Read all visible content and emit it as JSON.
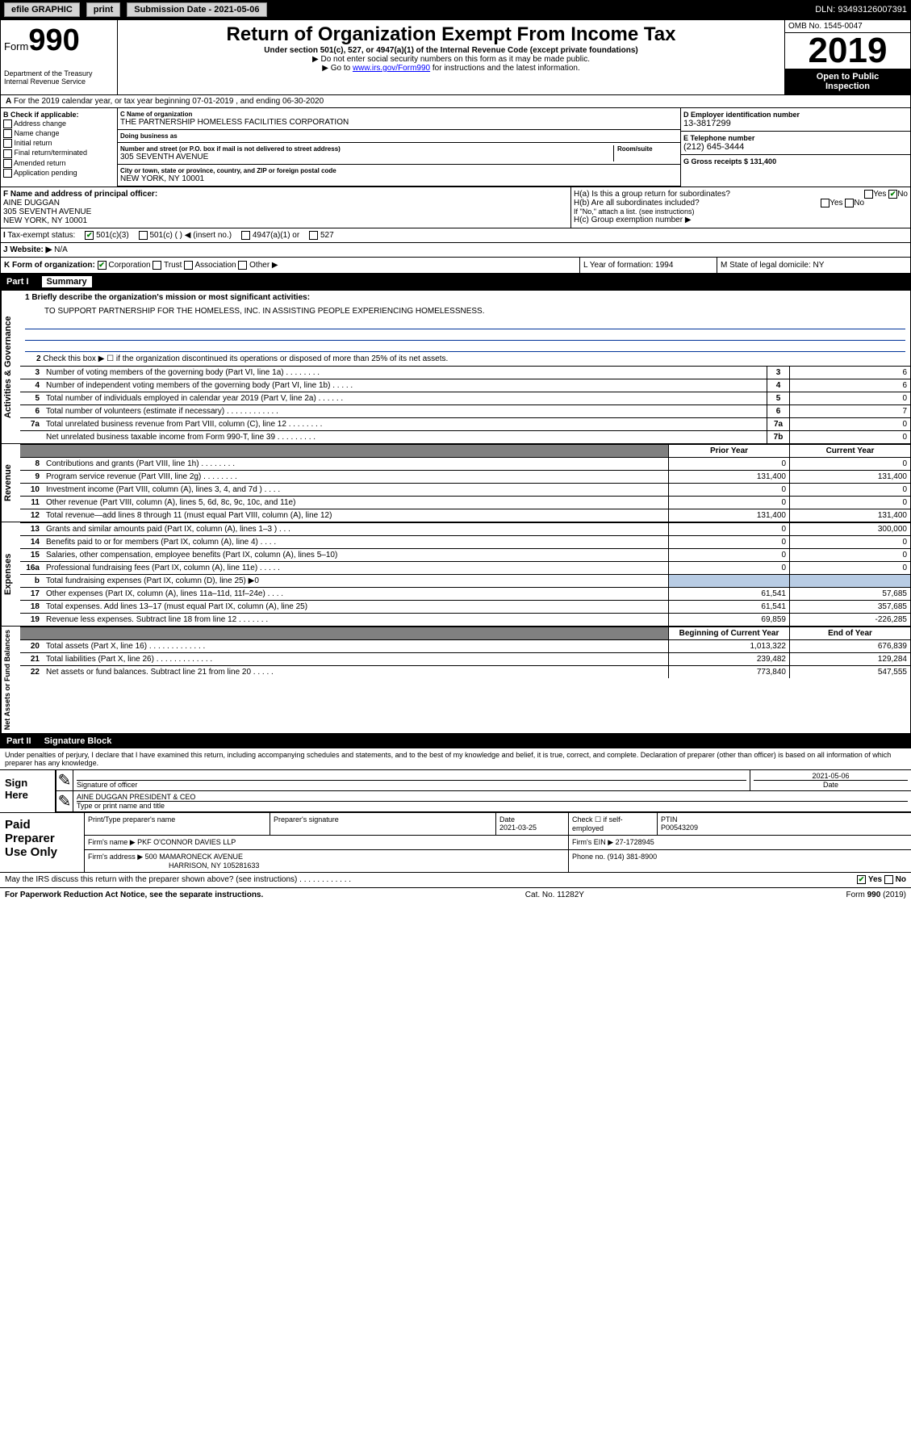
{
  "topbar": {
    "efile": "efile GRAPHIC",
    "print": "print",
    "submission": "Submission Date - 2021-05-06",
    "dln": "DLN: 93493126007391"
  },
  "header": {
    "form_word": "Form",
    "form_number": "990",
    "title": "Return of Organization Exempt From Income Tax",
    "subtitle": "Under section 501(c), 527, or 4947(a)(1) of the Internal Revenue Code (except private foundations)",
    "note1": "▶ Do not enter social security numbers on this form as it may be made public.",
    "note2_pre": "▶ Go to ",
    "note2_link": "www.irs.gov/Form990",
    "note2_post": " for instructions and the latest information.",
    "omb": "OMB No. 1545-0047",
    "year": "2019",
    "inspect1": "Open to Public",
    "inspect2": "Inspection",
    "dept1": "Department of the Treasury",
    "dept2": "Internal Revenue Service"
  },
  "section_a": {
    "line": "For the 2019 calendar year, or tax year beginning 07-01-2019    , and ending 06-30-2020"
  },
  "col_b": {
    "title": "B Check if applicable:",
    "items": [
      "Address change",
      "Name change",
      "Initial return",
      "Final return/terminated",
      "Amended return",
      "Application pending"
    ]
  },
  "org": {
    "name_lbl": "C Name of organization",
    "name": "THE PARTNERSHIP HOMELESS FACILITIES CORPORATION",
    "dba_lbl": "Doing business as",
    "dba": "",
    "addr_lbl": "Number and street (or P.O. box if mail is not delivered to street address)",
    "room_lbl": "Room/suite",
    "addr": "305 SEVENTH AVENUE",
    "city_lbl": "City or town, state or province, country, and ZIP or foreign postal code",
    "city": "NEW YORK, NY  10001"
  },
  "col_d": {
    "ein_lbl": "D Employer identification number",
    "ein": "13-3817299",
    "tel_lbl": "E Telephone number",
    "tel": "(212) 645-3444",
    "gross_lbl": "G Gross receipts $ 131,400"
  },
  "officer": {
    "lbl": "F  Name and address of principal officer:",
    "name": "AINE DUGGAN",
    "addr1": "305 SEVENTH AVENUE",
    "addr2": "NEW YORK, NY  10001"
  },
  "section_h": {
    "ha": "H(a)  Is this a group return for subordinates?",
    "hb": "H(b)  Are all subordinates included?",
    "hb_note": "If \"No,\" attach a list. (see instructions)",
    "hc": "H(c)  Group exemption number ▶",
    "yes": "Yes",
    "no": "No"
  },
  "tax_status": {
    "lbl": "Tax-exempt status:",
    "c3": "501(c)(3)",
    "c": "501(c) (  ) ◀ (insert no.)",
    "a1": "4947(a)(1) or",
    "s527": "527"
  },
  "website": {
    "lbl": "J  Website: ▶",
    "val": "N/A"
  },
  "form_org": {
    "k": "K Form of organization:",
    "corp": "Corporation",
    "trust": "Trust",
    "assoc": "Association",
    "other": "Other ▶",
    "l": "L Year of formation: 1994",
    "m": "M State of legal domicile: NY"
  },
  "part1": {
    "no": "Part I",
    "title": "Summary"
  },
  "summary": {
    "vlabel_ag": "Activities & Governance",
    "vlabel_rev": "Revenue",
    "vlabel_exp": "Expenses",
    "vlabel_net": "Net Assets or Fund Balances",
    "line1_lbl": "1   Briefly describe the organization's mission or most significant activities:",
    "line1_val": "TO SUPPORT PARTNERSHIP FOR THE HOMELESS, INC. IN ASSISTING PEOPLE EXPERIENCING HOMELESSNESS.",
    "line2": "Check this box ▶ ☐  if the organization discontinued its operations or disposed of more than 25% of its net assets.",
    "rows_ag": [
      {
        "n": "3",
        "t": "Number of voting members of the governing body (Part VI, line 1a)   .    .    .    .    .    .    .    .",
        "nb": "3",
        "v": "6"
      },
      {
        "n": "4",
        "t": "Number of independent voting members of the governing body (Part VI, line 1b)   .    .    .    .    .",
        "nb": "4",
        "v": "6"
      },
      {
        "n": "5",
        "t": "Total number of individuals employed in calendar year 2019 (Part V, line 2a)   .    .    .    .    .    .",
        "nb": "5",
        "v": "0"
      },
      {
        "n": "6",
        "t": "Total number of volunteers (estimate if necessary)   .    .    .    .    .    .    .    .    .    .    .    .",
        "nb": "6",
        "v": "7"
      },
      {
        "n": "7a",
        "t": "Total unrelated business revenue from Part VIII, column (C), line 12   .    .    .    .    .    .    .    .",
        "nb": "7a",
        "v": "0"
      },
      {
        "n": "",
        "t": "Net unrelated business taxable income from Form 990-T, line 39   .    .    .    .    .    .    .    .    .",
        "nb": "7b",
        "v": "0"
      }
    ],
    "head_prior": "Prior Year",
    "head_curr": "Current Year",
    "rows_rev": [
      {
        "n": "8",
        "t": "Contributions and grants (Part VIII, line 1h)   .    .    .    .    .    .    .    .",
        "p": "0",
        "c": "0"
      },
      {
        "n": "9",
        "t": "Program service revenue (Part VIII, line 2g)   .    .    .    .    .    .    .    .",
        "p": "131,400",
        "c": "131,400"
      },
      {
        "n": "10",
        "t": "Investment income (Part VIII, column (A), lines 3, 4, and 7d )   .    .    .    .",
        "p": "0",
        "c": "0"
      },
      {
        "n": "11",
        "t": "Other revenue (Part VIII, column (A), lines 5, 6d, 8c, 9c, 10c, and 11e)",
        "p": "0",
        "c": "0"
      },
      {
        "n": "12",
        "t": "Total revenue—add lines 8 through 11 (must equal Part VIII, column (A), line 12)",
        "p": "131,400",
        "c": "131,400"
      }
    ],
    "rows_exp": [
      {
        "n": "13",
        "t": "Grants and similar amounts paid (Part IX, column (A), lines 1–3 )   .    .    .",
        "p": "0",
        "c": "300,000"
      },
      {
        "n": "14",
        "t": "Benefits paid to or for members (Part IX, column (A), line 4)   .    .    .    .",
        "p": "0",
        "c": "0"
      },
      {
        "n": "15",
        "t": "Salaries, other compensation, employee benefits (Part IX, column (A), lines 5–10)",
        "p": "0",
        "c": "0"
      },
      {
        "n": "16a",
        "t": "Professional fundraising fees (Part IX, column (A), line 11e)   .    .    .    .    .",
        "p": "0",
        "c": "0"
      },
      {
        "n": "b",
        "t": "Total fundraising expenses (Part IX, column (D), line 25) ▶0",
        "p": "",
        "c": "",
        "shade": true
      },
      {
        "n": "17",
        "t": "Other expenses (Part IX, column (A), lines 11a–11d, 11f–24e)   .    .    .    .",
        "p": "61,541",
        "c": "57,685"
      },
      {
        "n": "18",
        "t": "Total expenses. Add lines 13–17 (must equal Part IX, column (A), line 25)",
        "p": "61,541",
        "c": "357,685"
      },
      {
        "n": "19",
        "t": "Revenue less expenses. Subtract line 18 from line 12   .    .    .    .    .    .    .",
        "p": "69,859",
        "c": "-226,285"
      }
    ],
    "head_beg": "Beginning of Current Year",
    "head_end": "End of Year",
    "rows_net": [
      {
        "n": "20",
        "t": "Total assets (Part X, line 16)   .    .    .    .    .    .    .    .    .    .    .    .    .",
        "p": "1,013,322",
        "c": "676,839"
      },
      {
        "n": "21",
        "t": "Total liabilities (Part X, line 26)   .    .    .    .    .    .    .    .    .    .    .    .    .",
        "p": "239,482",
        "c": "129,284"
      },
      {
        "n": "22",
        "t": "Net assets or fund balances. Subtract line 21 from line 20   .    .    .    .    .",
        "p": "773,840",
        "c": "547,555"
      }
    ]
  },
  "part2": {
    "no": "Part II",
    "title": "Signature Block"
  },
  "perjury": "Under penalties of perjury, I declare that I have examined this return, including accompanying schedules and statements, and to the best of my knowledge and belief, it is true, correct, and complete. Declaration of preparer (other than officer) is based on all information of which preparer has any knowledge.",
  "sign": {
    "lbl": "Sign Here",
    "sig_lbl": "Signature of officer",
    "date": "2021-05-06",
    "date_lbl": "Date",
    "name": "AINE DUGGAN  PRESIDENT & CEO",
    "name_lbl": "Type or print name and title"
  },
  "paid": {
    "lbl": "Paid Preparer Use Only",
    "h_name": "Print/Type preparer's name",
    "h_sig": "Preparer's signature",
    "h_date": "Date",
    "date_val": "2021-03-25",
    "h_check": "Check ☐ if self-employed",
    "h_ptin": "PTIN",
    "ptin_val": "P00543209",
    "firm_name_lbl": "Firm's name     ▶",
    "firm_name": "PKF O'CONNOR DAVIES LLP",
    "firm_ein_lbl": "Firm's EIN ▶",
    "firm_ein": "27-1728945",
    "firm_addr_lbl": "Firm's address ▶",
    "firm_addr1": "500 MAMARONECK AVENUE",
    "firm_addr2": "HARRISON, NY  105281633",
    "phone_lbl": "Phone no.",
    "phone": "(914) 381-8900"
  },
  "discuss": {
    "txt": "May the IRS discuss this return with the preparer shown above? (see instructions)    .    .    .    .    .    .    .    .    .    .    .    .",
    "yes": "Yes",
    "no": "No"
  },
  "footer": {
    "left": "For Paperwork Reduction Act Notice, see the separate instructions.",
    "mid": "Cat. No. 11282Y",
    "right": "Form 990 (2019)"
  }
}
